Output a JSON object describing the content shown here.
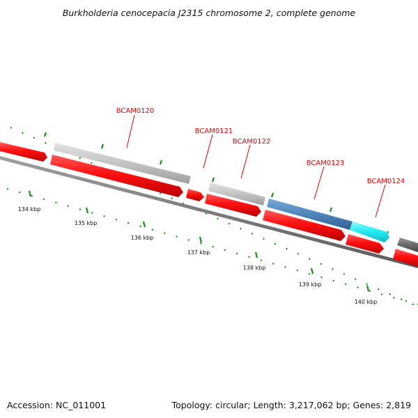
{
  "title": "Burkholderia cenocepacia J2315 chromosome 2, complete genome",
  "footer": {
    "accession": "Accession: NC_011001",
    "summary": "Topology: circular; Length: 3,217,062 bp; Genes: 2,819"
  },
  "gene_labels": [
    "BCAM0120",
    "BCAM0121",
    "BCAM0122",
    "BCAM0123",
    "BCAM0124"
  ],
  "scale_labels": [
    "134 kbp",
    "135 kbp",
    "136 kbp",
    "137 kbp",
    "138 kbp",
    "139 kbp",
    "140 kbp"
  ],
  "colors": {
    "cds": "#ff1010",
    "gene_grey": "#c4c4c4",
    "gene_blue": "#4f86bd",
    "gene_cyan": "#22eaf2",
    "gene_dark": "#6a6a6a",
    "backbone": "#777777",
    "tick": "#1a8a1a",
    "label": "#e00000"
  }
}
